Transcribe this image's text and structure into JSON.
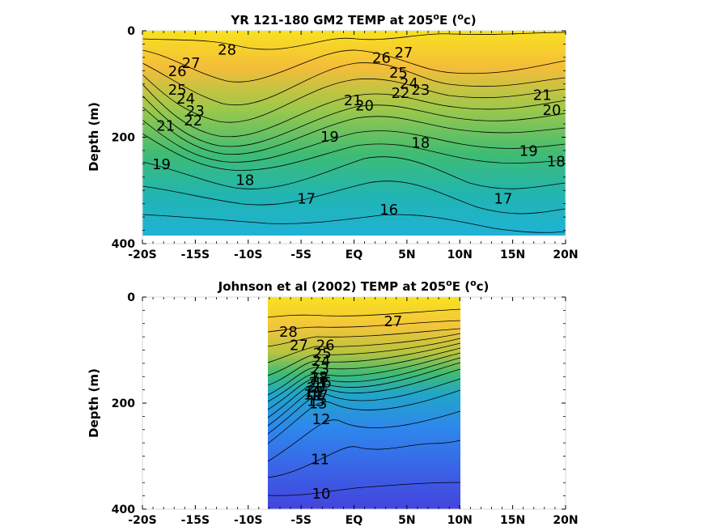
{
  "chart_data": [
    {
      "type": "contour",
      "title": "YR 121-180 GM2 TEMP at 205",
      "title_superscript": "o",
      "title_tail": "E (",
      "title_unit_superscript": "o",
      "title_unit_tail": "c)",
      "ylabel": "Depth (m)",
      "x_categories": [
        "-20S",
        "-15S",
        "-10S",
        "-5S",
        "EQ",
        "5N",
        "10N",
        "15N",
        "20N"
      ],
      "x_values": [
        -20,
        -15,
        -10,
        -5,
        0,
        5,
        10,
        15,
        20
      ],
      "xlim": [
        -20,
        20
      ],
      "y_ticks": [
        0,
        200,
        400
      ],
      "ylim": [
        0,
        400
      ],
      "y_reversed": true,
      "data_xlim": [
        -20,
        20
      ],
      "data_ylim": [
        0,
        385
      ],
      "temperature_range": [
        16,
        28
      ],
      "contour_labels": [
        {
          "text": "28",
          "x": -12,
          "y": 45
        },
        {
          "text": "27",
          "x": -15.4,
          "y": 70
        },
        {
          "text": "26",
          "x": -16.7,
          "y": 85
        },
        {
          "text": "25",
          "x": -16.7,
          "y": 120
        },
        {
          "text": "24",
          "x": -15.9,
          "y": 137
        },
        {
          "text": "23",
          "x": -15,
          "y": 160
        },
        {
          "text": "22",
          "x": -15.2,
          "y": 178
        },
        {
          "text": "21",
          "x": -17.8,
          "y": 188
        },
        {
          "text": "19",
          "x": -18.2,
          "y": 260
        },
        {
          "text": "18",
          "x": -10.3,
          "y": 290
        },
        {
          "text": "17",
          "x": -4.5,
          "y": 325
        },
        {
          "text": "16",
          "x": 3.3,
          "y": 345
        },
        {
          "text": "17",
          "x": 14.1,
          "y": 325
        },
        {
          "text": "18",
          "x": 6.3,
          "y": 220
        },
        {
          "text": "19",
          "x": -2.3,
          "y": 208
        },
        {
          "text": "20",
          "x": 1,
          "y": 150
        },
        {
          "text": "21",
          "x": -0.1,
          "y": 140
        },
        {
          "text": "26",
          "x": 2.6,
          "y": 60
        },
        {
          "text": "27",
          "x": 4.7,
          "y": 50
        },
        {
          "text": "25",
          "x": 4.2,
          "y": 88
        },
        {
          "text": "24",
          "x": 5.2,
          "y": 108
        },
        {
          "text": "23",
          "x": 6.3,
          "y": 120
        },
        {
          "text": "22",
          "x": 4.4,
          "y": 126
        },
        {
          "text": "21",
          "x": 17.8,
          "y": 130
        },
        {
          "text": "20",
          "x": 18.7,
          "y": 158
        },
        {
          "text": "19",
          "x": 16.5,
          "y": 235
        },
        {
          "text": "18",
          "x": 19.1,
          "y": 255
        }
      ]
    },
    {
      "type": "contour",
      "title": "Johnson et al (2002) TEMP at 205",
      "title_superscript": "o",
      "title_tail": "E (",
      "title_unit_superscript": "o",
      "title_unit_tail": "c)",
      "ylabel": "Depth (m)",
      "x_categories": [
        "-20S",
        "-15S",
        "-10S",
        "-5S",
        "EQ",
        "5N",
        "10N",
        "15N",
        "20N"
      ],
      "x_values": [
        -20,
        -15,
        -10,
        -5,
        0,
        5,
        10,
        15,
        20
      ],
      "xlim": [
        -20,
        20
      ],
      "y_ticks": [
        0,
        200,
        400
      ],
      "ylim": [
        0,
        400
      ],
      "y_reversed": true,
      "data_xlim": [
        -8,
        10
      ],
      "data_ylim": [
        0,
        400
      ],
      "temperature_range": [
        10,
        28
      ],
      "contour_labels": [
        {
          "text": "28",
          "x": -6.2,
          "y": 75
        },
        {
          "text": "27",
          "x": -5.2,
          "y": 100
        },
        {
          "text": "26",
          "x": -2.7,
          "y": 100
        },
        {
          "text": "25",
          "x": -3,
          "y": 115
        },
        {
          "text": "24",
          "x": -3.1,
          "y": 130
        },
        {
          "text": "23",
          "x": -3.2,
          "y": 145
        },
        {
          "text": "22",
          "x": -3.3,
          "y": 160
        },
        {
          "text": "21",
          "x": -3.4,
          "y": 170
        },
        {
          "text": "20",
          "x": -3.6,
          "y": 180
        },
        {
          "text": "19",
          "x": -3.8,
          "y": 188
        },
        {
          "text": "18",
          "x": -3.3,
          "y": 160
        },
        {
          "text": "17",
          "x": -3.3,
          "y": 195
        },
        {
          "text": "16",
          "x": -3,
          "y": 170
        },
        {
          "text": "15",
          "x": -3.6,
          "y": 205
        },
        {
          "text": "14",
          "x": -3.9,
          "y": 193
        },
        {
          "text": "13",
          "x": -3.4,
          "y": 210
        },
        {
          "text": "12",
          "x": -3.1,
          "y": 240
        },
        {
          "text": "11",
          "x": -3.2,
          "y": 315
        },
        {
          "text": "10",
          "x": -3.1,
          "y": 380
        },
        {
          "text": "27",
          "x": 3.7,
          "y": 55
        }
      ]
    }
  ]
}
